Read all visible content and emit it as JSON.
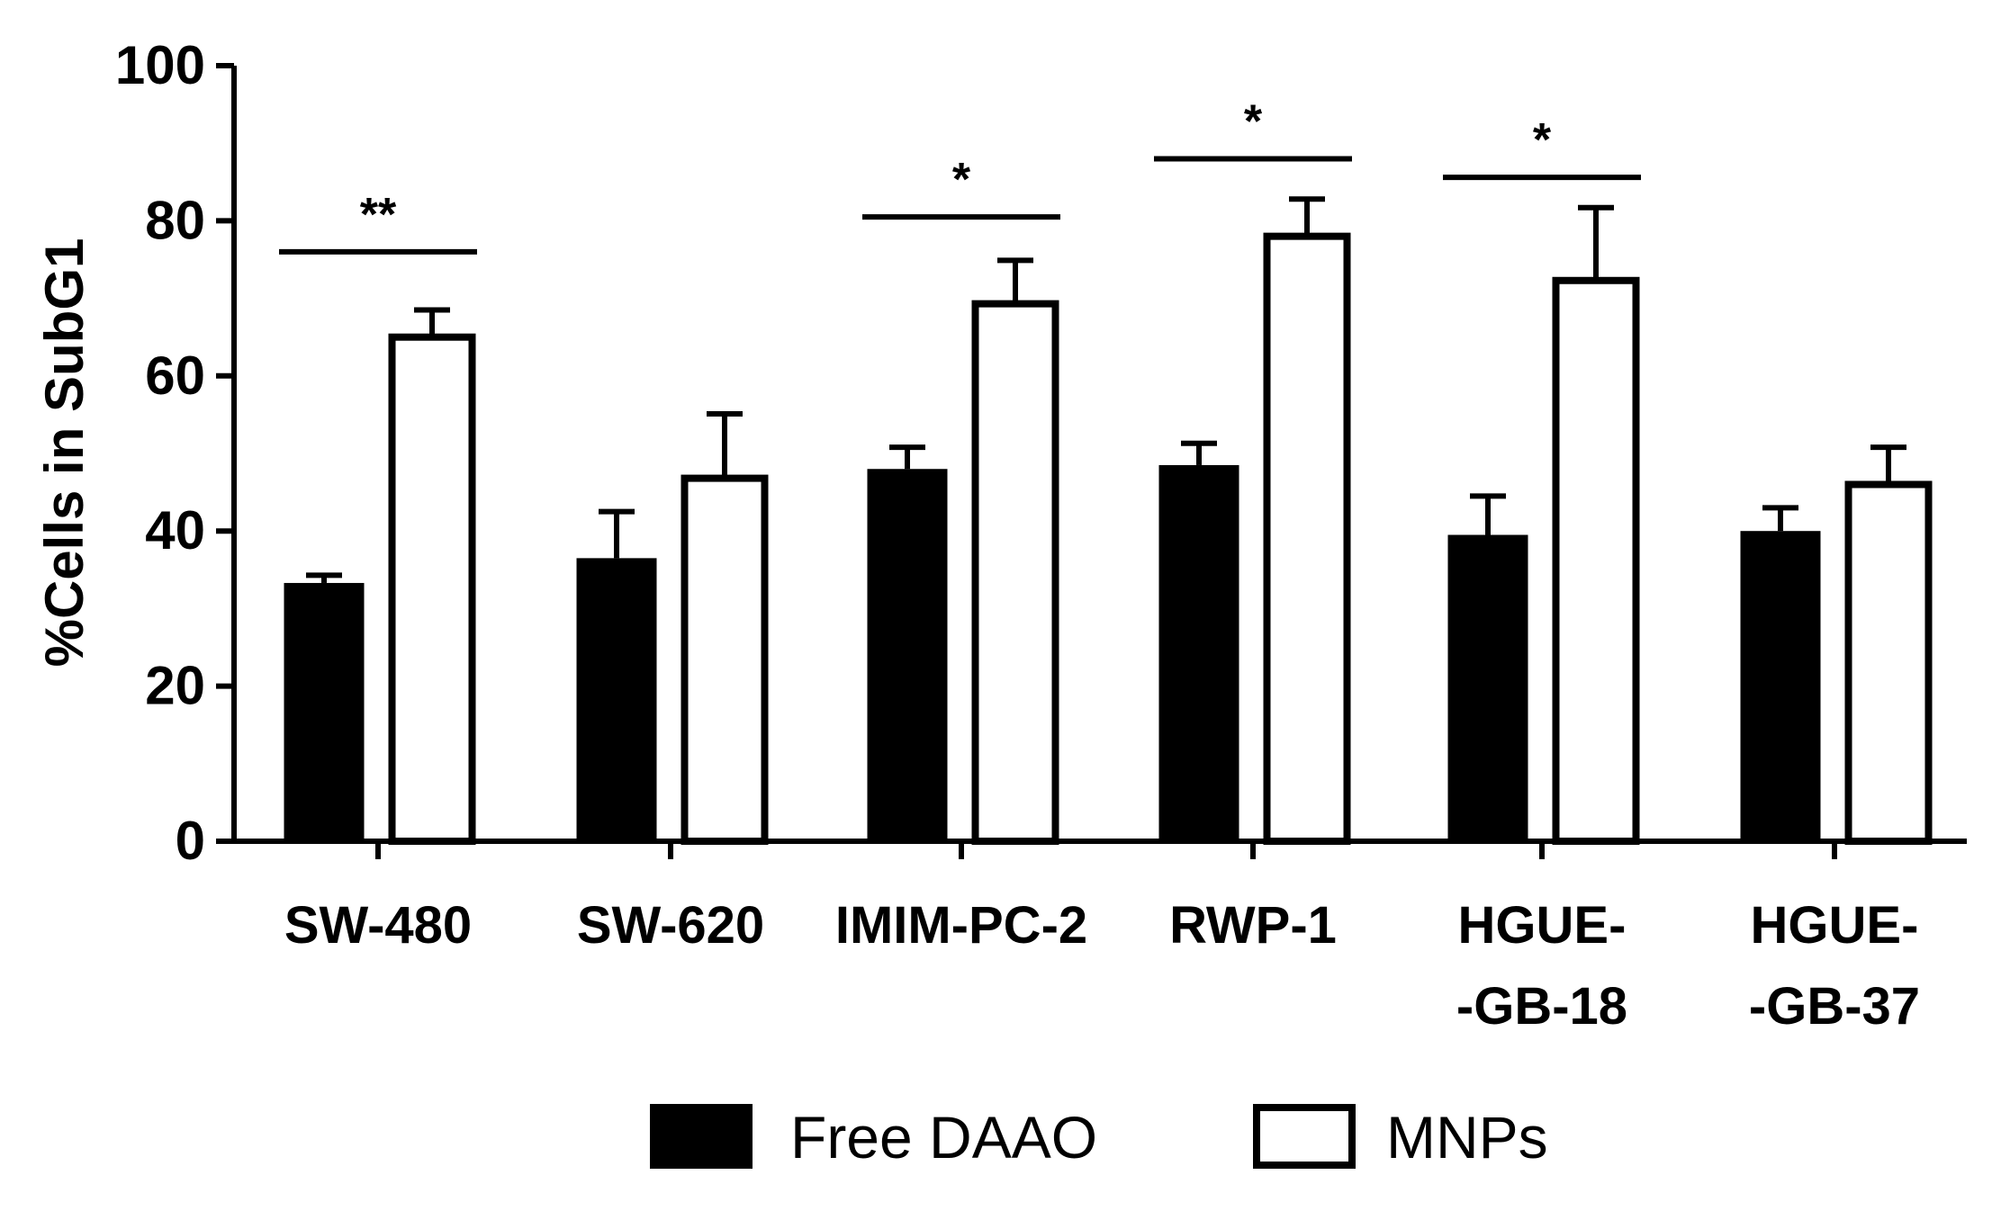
{
  "chart_data": {
    "type": "bar",
    "title": "",
    "xlabel": "",
    "ylabel": "%Cells in SubG1",
    "ylim": [
      0,
      100
    ],
    "yticks": [
      0,
      20,
      40,
      60,
      80,
      100
    ],
    "grid": false,
    "legend_position": "bottom",
    "categories": [
      [
        "SW-480"
      ],
      [
        "SW-620"
      ],
      [
        "IMIM-PC-2"
      ],
      [
        "RWP-1"
      ],
      [
        "HGUE-",
        "-GB-18"
      ],
      [
        "HGUE-",
        "-GB-37"
      ]
    ],
    "series": [
      {
        "name": "Free DAAO",
        "fill": "#000000",
        "values": [
          33.3,
          36.5,
          48.0,
          48.5,
          39.5,
          40.0
        ],
        "errors": [
          1.0,
          6.0,
          2.8,
          2.8,
          5.0,
          3.0
        ]
      },
      {
        "name": "MNPs",
        "fill": "#ffffff",
        "values": [
          65.0,
          46.8,
          69.3,
          78.0,
          72.3,
          46.0
        ],
        "errors": [
          3.5,
          8.3,
          5.6,
          4.8,
          9.4,
          4.8
        ]
      }
    ],
    "significance": [
      {
        "category_index": 0,
        "label": "**",
        "y": 76
      },
      {
        "category_index": 2,
        "label": "*",
        "y": 80.5
      },
      {
        "category_index": 3,
        "label": "*",
        "y": 88
      },
      {
        "category_index": 4,
        "label": "*",
        "y": 85.6
      }
    ]
  }
}
